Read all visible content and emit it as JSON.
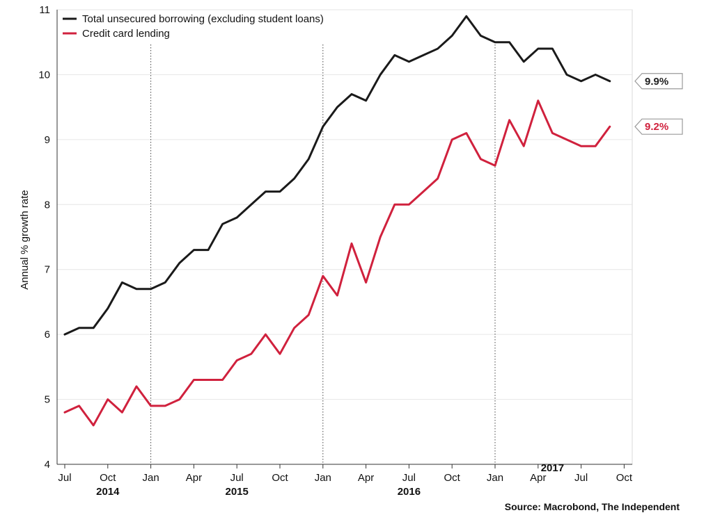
{
  "chart_data": {
    "type": "line",
    "title": "",
    "xlabel": "",
    "ylabel": "Annual % growth rate",
    "ylim": [
      4,
      11
    ],
    "yticks": [
      4,
      5,
      6,
      7,
      8,
      9,
      10,
      11
    ],
    "grid": "horizontal",
    "legend_position": "top-left",
    "x_month_ticks": [
      {
        "label": "Jul",
        "date": "2013-07"
      },
      {
        "label": "Oct",
        "date": "2013-10"
      },
      {
        "label": "Jan",
        "date": "2014-01"
      },
      {
        "label": "Apr",
        "date": "2014-04"
      },
      {
        "label": "Jul",
        "date": "2014-07"
      },
      {
        "label": "Oct",
        "date": "2014-10"
      },
      {
        "label": "Jan",
        "date": "2015-01"
      },
      {
        "label": "Apr",
        "date": "2015-04"
      },
      {
        "label": "Jul",
        "date": "2015-07"
      },
      {
        "label": "Oct",
        "date": "2015-10"
      },
      {
        "label": "Jan",
        "date": "2016-01"
      },
      {
        "label": "Apr",
        "date": "2016-04"
      },
      {
        "label": "Jul",
        "date": "2016-07"
      },
      {
        "label": "Oct",
        "date": "2016-10"
      }
    ],
    "x_year_labels": [
      {
        "label": "2014",
        "date": "2013-10"
      },
      {
        "label": "2015",
        "date": "2014-07"
      },
      {
        "label": "2016",
        "date": "2015-07"
      },
      {
        "label": "2017",
        "date": "2016-05"
      }
    ],
    "year_boundaries": [
      "2014-01",
      "2015-01",
      "2016-01"
    ],
    "x": [
      "2013-07",
      "2013-08",
      "2013-09",
      "2013-10",
      "2013-11",
      "2013-12",
      "2014-01",
      "2014-02",
      "2014-03",
      "2014-04",
      "2014-05",
      "2014-06",
      "2014-07",
      "2014-08",
      "2014-09",
      "2014-10",
      "2014-11",
      "2014-12",
      "2015-01",
      "2015-02",
      "2015-03",
      "2015-04",
      "2015-05",
      "2015-06",
      "2015-07",
      "2015-08",
      "2015-09",
      "2015-10",
      "2015-11",
      "2015-12",
      "2016-01",
      "2016-02",
      "2016-03",
      "2016-04",
      "2016-05",
      "2016-06",
      "2016-07",
      "2016-08",
      "2016-09"
    ],
    "series": [
      {
        "name": "Total unsecured borrowing (excluding student loans)",
        "color": "#1a1a1a",
        "end_label": "9.9%",
        "values": [
          6.0,
          6.1,
          6.1,
          6.4,
          6.8,
          6.7,
          6.7,
          6.8,
          7.1,
          7.3,
          7.3,
          7.7,
          7.8,
          8.0,
          8.2,
          8.2,
          8.4,
          8.7,
          9.2,
          9.5,
          9.7,
          9.6,
          10.0,
          10.3,
          10.2,
          10.3,
          10.4,
          10.6,
          10.9,
          10.6,
          10.5,
          10.5,
          10.2,
          10.4,
          10.4,
          10.0,
          9.9,
          10.0,
          9.9
        ]
      },
      {
        "name": "Credit card lending",
        "color": "#d0213d",
        "end_label": "9.2%",
        "values": [
          4.8,
          4.9,
          4.6,
          5.0,
          4.8,
          5.2,
          4.9,
          4.9,
          5.0,
          5.3,
          5.3,
          5.3,
          5.6,
          5.7,
          6.0,
          5.7,
          6.1,
          6.3,
          6.9,
          6.6,
          7.4,
          6.8,
          7.5,
          8.0,
          8.0,
          8.2,
          8.4,
          9.0,
          9.1,
          8.7,
          8.6,
          9.3,
          8.9,
          9.6,
          9.1,
          9.0,
          8.9,
          8.9,
          9.2
        ]
      }
    ]
  },
  "source": "Source: Macrobond, The Independent"
}
